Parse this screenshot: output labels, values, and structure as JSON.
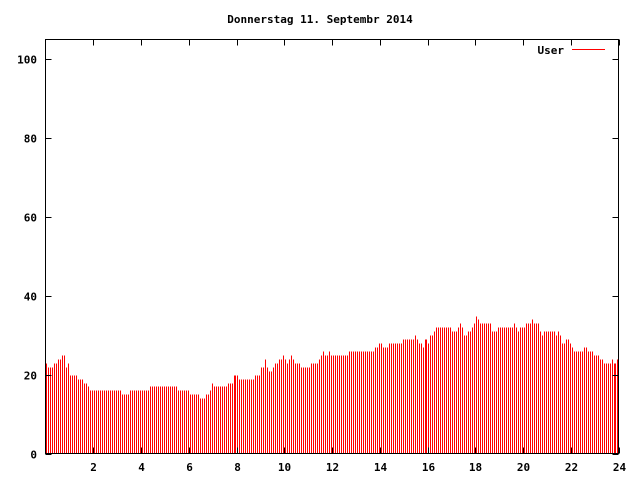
{
  "chart_data": {
    "type": "bar",
    "title": "Donnerstag 11. Septembr 2014",
    "xlabel": "",
    "ylabel": "",
    "xlim": [
      0,
      24
    ],
    "ylim": [
      0,
      105
    ],
    "x_step": 0.08333,
    "xticks": [
      2,
      4,
      6,
      8,
      10,
      12,
      14,
      16,
      18,
      20,
      22,
      24
    ],
    "xtick_labels": [
      "2",
      "4",
      "6",
      "8",
      "10",
      "12",
      "14",
      "16",
      "18",
      "20",
      "22",
      "24"
    ],
    "yticks": [
      0,
      20,
      40,
      60,
      80,
      100
    ],
    "ytick_labels": [
      "0",
      "20",
      "40",
      "60",
      "80",
      "100"
    ],
    "grid": false,
    "legend_position": "top-right",
    "series": [
      {
        "name": "User",
        "color": "#ff0000",
        "values": [
          23,
          22,
          22,
          22,
          23,
          23,
          24,
          24,
          25,
          25,
          22,
          23,
          20,
          20,
          20,
          20,
          19,
          19,
          19,
          18,
          18,
          17,
          16,
          16,
          16,
          16,
          16,
          16,
          16,
          16,
          16,
          16,
          16,
          16,
          16,
          16,
          16,
          16,
          15,
          15,
          15,
          15,
          16,
          16,
          16,
          16,
          16,
          16,
          16,
          16,
          16,
          16,
          17,
          17,
          17,
          17,
          17,
          17,
          17,
          17,
          17,
          17,
          17,
          17,
          17,
          17,
          16,
          16,
          16,
          16,
          16,
          16,
          15,
          15,
          15,
          15,
          15,
          14,
          14,
          14,
          15,
          15,
          16,
          18,
          17,
          17,
          17,
          17,
          17,
          17,
          17,
          18,
          18,
          18,
          20,
          20,
          20,
          19,
          19,
          19,
          19,
          19,
          19,
          19,
          19,
          20,
          20,
          20,
          22,
          22,
          24,
          22,
          21,
          21,
          22,
          23,
          23,
          24,
          24,
          25,
          24,
          23,
          24,
          25,
          24,
          23,
          23,
          23,
          22,
          22,
          22,
          22,
          22,
          23,
          23,
          23,
          23,
          24,
          25,
          26,
          25,
          25,
          26,
          25,
          25,
          25,
          25,
          25,
          25,
          25,
          25,
          25,
          26,
          26,
          26,
          26,
          26,
          26,
          26,
          26,
          26,
          26,
          26,
          26,
          26,
          27,
          27,
          28,
          28,
          27,
          27,
          27,
          28,
          28,
          28,
          28,
          28,
          28,
          28,
          29,
          29,
          29,
          29,
          29,
          29,
          30,
          29,
          28,
          28,
          27,
          29,
          29,
          28,
          30,
          30,
          31,
          32,
          32,
          32,
          32,
          32,
          32,
          32,
          32,
          31,
          31,
          31,
          32,
          33,
          32,
          30,
          30,
          31,
          31,
          32,
          33,
          35,
          34,
          33,
          33,
          33,
          33,
          33,
          33,
          31,
          31,
          31,
          32,
          32,
          32,
          32,
          32,
          32,
          32,
          32,
          33,
          32,
          31,
          32,
          32,
          32,
          33,
          33,
          33,
          34,
          33,
          33,
          33,
          31,
          30,
          31,
          31,
          31,
          31,
          31,
          31,
          30,
          31,
          30,
          28,
          28,
          29,
          29,
          28,
          27,
          26,
          26,
          26,
          26,
          26,
          27,
          27,
          26,
          26,
          26,
          25,
          25,
          25,
          24,
          24,
          23,
          23,
          23,
          23,
          24,
          23,
          23,
          24
        ]
      }
    ]
  }
}
